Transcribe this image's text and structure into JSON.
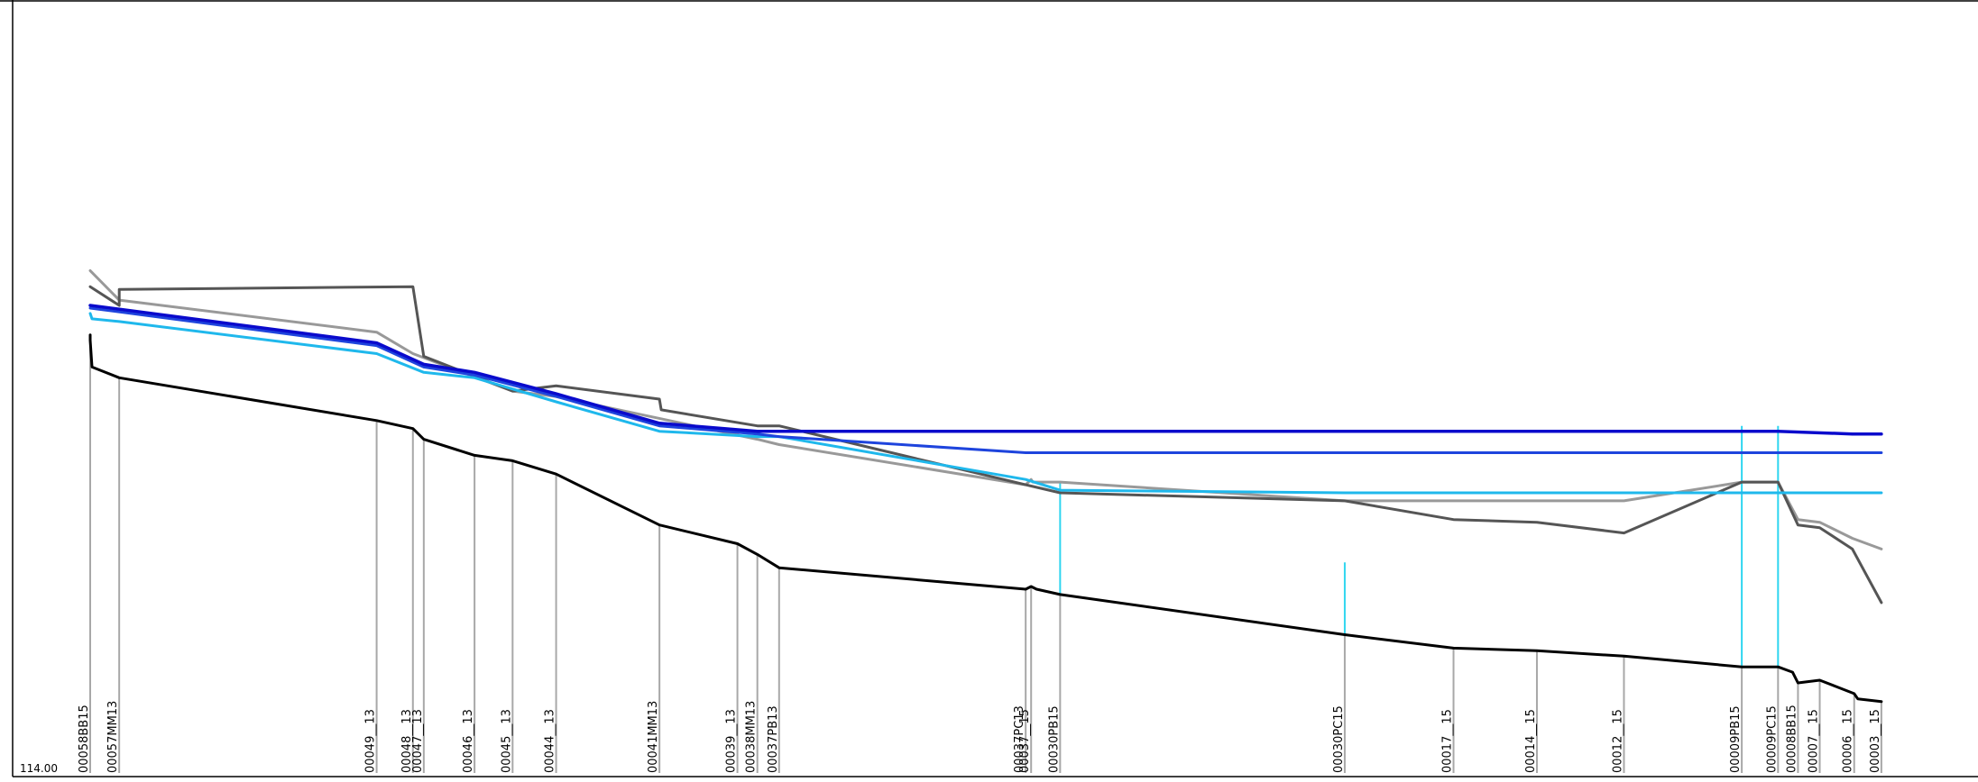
{
  "chart_data": {
    "type": "line",
    "axis": {
      "y_baseline_label": "114.00",
      "ylim": [
        114.0,
        142.0
      ],
      "xlim": [
        0,
        1000
      ],
      "grid": false
    },
    "stations": [
      {
        "label": "00058BB15",
        "x": 0
      },
      {
        "label": "00057MM13",
        "x": 16
      },
      {
        "label": "00049__13",
        "x": 158
      },
      {
        "label": "00048__13",
        "x": 178
      },
      {
        "label": "00047__13",
        "x": 184
      },
      {
        "label": "00046__13",
        "x": 212
      },
      {
        "label": "00045__13",
        "x": 233
      },
      {
        "label": "00044__13",
        "x": 257
      },
      {
        "label": "00041MM13",
        "x": 314
      },
      {
        "label": "00039__13",
        "x": 357
      },
      {
        "label": "00038MM13",
        "x": 368
      },
      {
        "label": "00037PB13",
        "x": 380
      },
      {
        "label": "00037PC13",
        "x": 516
      },
      {
        "label": "00037__15",
        "x": 519
      },
      {
        "label": "00030PB15",
        "x": 535
      },
      {
        "label": "00030PC15",
        "x": 692
      },
      {
        "label": "00017__15",
        "x": 752
      },
      {
        "label": "00014__15",
        "x": 798
      },
      {
        "label": "00012__15",
        "x": 846
      },
      {
        "label": "00009PB15",
        "x": 911
      },
      {
        "label": "00009PC15",
        "x": 931
      },
      {
        "label": "00008BB15",
        "x": 942
      },
      {
        "label": "00007__15",
        "x": 954
      },
      {
        "label": "00006__15",
        "x": 973
      },
      {
        "label": "00003__15",
        "x": 988
      }
    ],
    "series": [
      {
        "key": "bed",
        "color": "#000000",
        "width": 3,
        "x": [
          0,
          0,
          1,
          16,
          158,
          178,
          184,
          212,
          233,
          257,
          314,
          357,
          368,
          380,
          516,
          519,
          522,
          535,
          692,
          752,
          798,
          846,
          911,
          931,
          939,
          942,
          954,
          973,
          975,
          988
        ],
        "values": [
          130.5,
          130.3,
          129.3,
          128.9,
          127.3,
          127.0,
          126.6,
          126.0,
          125.8,
          125.3,
          123.4,
          122.7,
          122.3,
          121.8,
          121.0,
          121.1,
          121.0,
          120.8,
          119.3,
          118.8,
          118.7,
          118.5,
          118.1,
          118.1,
          117.9,
          117.5,
          117.6,
          117.1,
          116.9,
          116.8
        ]
      },
      {
        "key": "grey-dark",
        "color": "#555555",
        "width": 3,
        "x": [
          0,
          16,
          16,
          178,
          184,
          233,
          257,
          314,
          315,
          368,
          380,
          516,
          535,
          692,
          752,
          798,
          846,
          911,
          931,
          942,
          954,
          972,
          988
        ],
        "values": [
          132.3,
          131.6,
          132.2,
          132.3,
          129.7,
          128.4,
          128.6,
          128.1,
          127.7,
          127.1,
          127.1,
          124.9,
          124.6,
          124.3,
          123.6,
          123.5,
          123.1,
          125.0,
          125.0,
          123.4,
          123.3,
          122.5,
          120.5
        ]
      },
      {
        "key": "grey-light",
        "color": "#999999",
        "width": 3,
        "x": [
          0,
          16,
          158,
          178,
          233,
          257,
          368,
          380,
          516,
          519,
          520,
          528,
          535,
          692,
          846,
          911,
          931,
          942,
          954,
          972,
          988
        ],
        "values": [
          132.9,
          131.8,
          130.6,
          129.8,
          128.4,
          128.2,
          126.6,
          126.4,
          124.9,
          125.1,
          125.0,
          125.0,
          125.0,
          124.3,
          124.3,
          125.0,
          125.0,
          123.6,
          123.5,
          122.9,
          122.5
        ]
      },
      {
        "key": "blue-navy",
        "color": "#0a0acc",
        "width": 3.5,
        "x": [
          0,
          158,
          184,
          212,
          257,
          314,
          368,
          535,
          692,
          931,
          972,
          988
        ],
        "values": [
          131.6,
          130.2,
          129.4,
          129.1,
          128.3,
          127.2,
          126.9,
          126.9,
          126.9,
          126.9,
          126.8,
          126.8
        ]
      },
      {
        "key": "blue-royal",
        "color": "#1e44dd",
        "width": 3,
        "x": [
          0,
          158,
          184,
          212,
          257,
          314,
          368,
          380,
          516,
          535,
          692,
          988
        ],
        "values": [
          131.5,
          130.1,
          129.3,
          129.0,
          128.2,
          127.1,
          126.8,
          126.7,
          126.1,
          126.1,
          126.1,
          126.1
        ]
      },
      {
        "key": "cyan",
        "color": "#1fb8ec",
        "width": 3,
        "x": [
          0,
          1,
          16,
          158,
          184,
          212,
          257,
          314,
          368,
          380,
          516,
          535,
          692,
          988
        ],
        "values": [
          131.3,
          131.1,
          131.0,
          129.8,
          129.1,
          128.9,
          128.0,
          126.9,
          126.7,
          126.7,
          125.1,
          124.7,
          124.6,
          124.6
        ]
      }
    ],
    "cyan_markers": [
      {
        "x": 535,
        "y_top": 125.0
      },
      {
        "x": 692,
        "y_top": 122.0
      },
      {
        "x": 911,
        "y_top": 127.1
      },
      {
        "x": 931,
        "y_top": 127.1
      }
    ],
    "colors": {
      "station_line": "#a8a8a8",
      "frame": "#000000",
      "cyan_marker": "#2fd6f0"
    }
  }
}
